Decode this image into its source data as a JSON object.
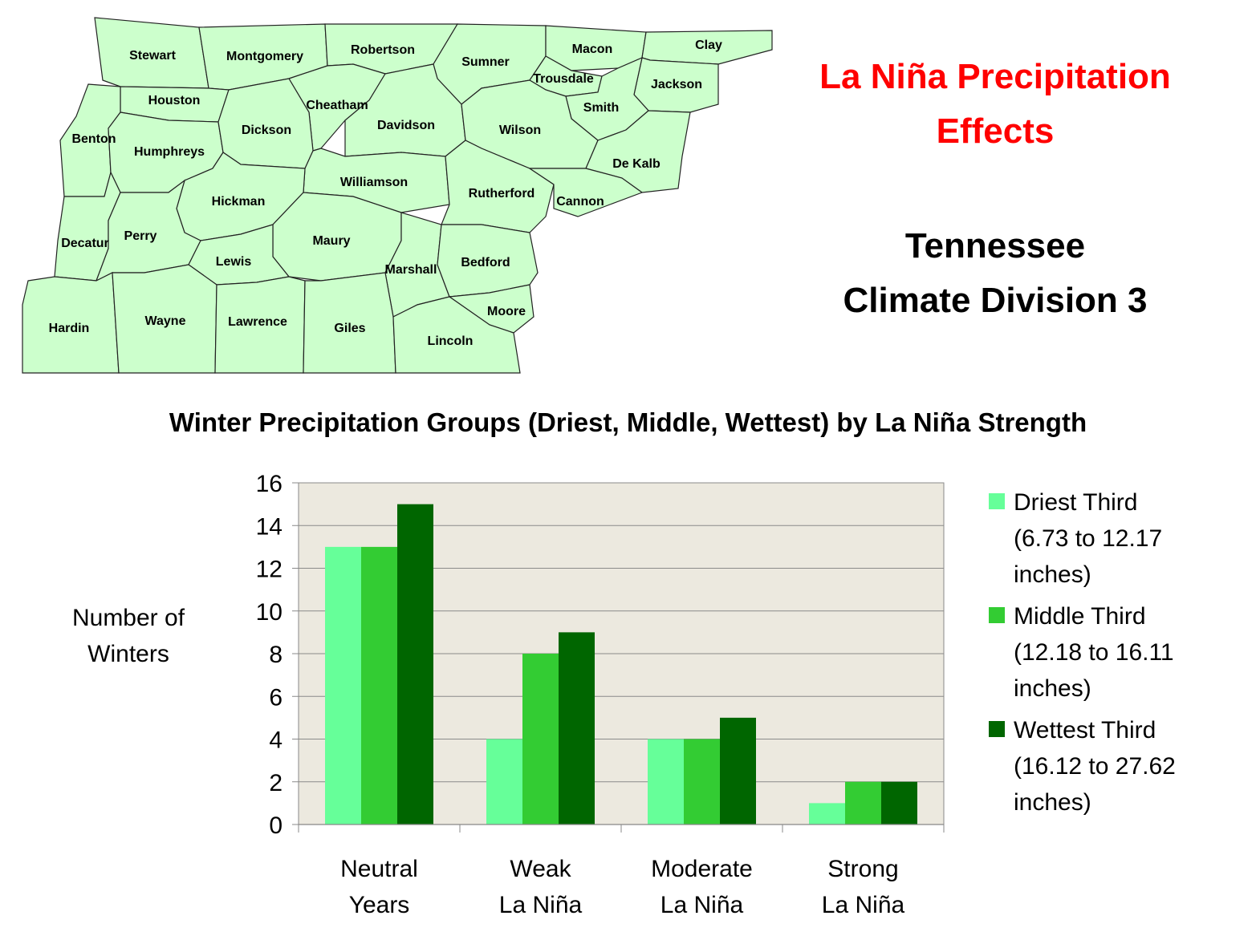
{
  "map": {
    "counties": [
      {
        "name": "Stewart"
      },
      {
        "name": "Montgomery"
      },
      {
        "name": "Robertson"
      },
      {
        "name": "Sumner"
      },
      {
        "name": "Macon"
      },
      {
        "name": "Clay"
      },
      {
        "name": "Trousdale"
      },
      {
        "name": "Jackson"
      },
      {
        "name": "Houston"
      },
      {
        "name": "Cheatham"
      },
      {
        "name": "Davidson"
      },
      {
        "name": "Smith"
      },
      {
        "name": "Wilson"
      },
      {
        "name": "Benton"
      },
      {
        "name": "Humphreys"
      },
      {
        "name": "Dickson"
      },
      {
        "name": "De Kalb"
      },
      {
        "name": "Williamson"
      },
      {
        "name": "Rutherford"
      },
      {
        "name": "Cannon"
      },
      {
        "name": "Hickman"
      },
      {
        "name": "Decatur"
      },
      {
        "name": "Perry"
      },
      {
        "name": "Maury"
      },
      {
        "name": "Lewis"
      },
      {
        "name": "Marshall"
      },
      {
        "name": "Bedford"
      },
      {
        "name": "Moore"
      },
      {
        "name": "Hardin"
      },
      {
        "name": "Wayne"
      },
      {
        "name": "Lawrence"
      },
      {
        "name": "Giles"
      },
      {
        "name": "Lincoln"
      }
    ],
    "fill_color": "#ccffcc"
  },
  "header": {
    "title_line1": "La Niña Precipitation",
    "title_line2": "Effects",
    "subtitle_line1": "Tennessee",
    "subtitle_line2": "Climate Division 3",
    "title_color": "#ff0000"
  },
  "chart_data": {
    "type": "bar",
    "title": "Winter Precipitation Groups (Driest, Middle, Wettest) by La Niña Strength",
    "ylabel": [
      "Number of",
      "Winters"
    ],
    "ylim": [
      0,
      16
    ],
    "yticks": [
      0,
      2,
      4,
      6,
      8,
      10,
      12,
      14,
      16
    ],
    "grid": true,
    "plot_background": "#ece9df",
    "legend_position": "right",
    "categories": [
      [
        "Neutral",
        "Years"
      ],
      [
        "Weak",
        "La Niña"
      ],
      [
        "Moderate",
        "La Niña"
      ],
      [
        "Strong",
        "La Niña"
      ]
    ],
    "series": [
      {
        "name": [
          "Driest Third",
          "(6.73 to 12.17",
          "inches)"
        ],
        "color": "#66ff99",
        "values": [
          13,
          4,
          4,
          1
        ]
      },
      {
        "name": [
          "Middle Third",
          "(12.18 to 16.11",
          "inches)"
        ],
        "color": "#33cc33",
        "values": [
          13,
          8,
          4,
          2
        ]
      },
      {
        "name": [
          "Wettest Third",
          "(16.12 to 27.62",
          "inches)"
        ],
        "color": "#006600",
        "values": [
          15,
          9,
          5,
          2
        ]
      }
    ]
  }
}
